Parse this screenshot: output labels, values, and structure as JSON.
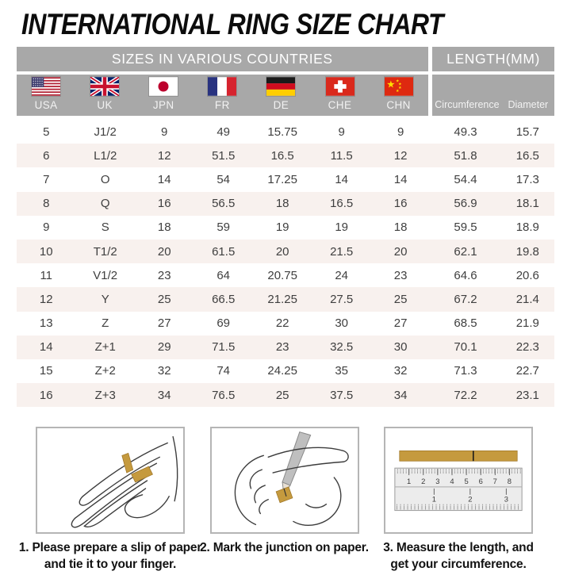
{
  "title": "INTERNATIONAL RING SIZE CHART",
  "colors": {
    "header_gray": "#a8a8a8",
    "header_text": "#ffffff",
    "row_alt": "#f8f1ee",
    "body_text": "#3f3f3f",
    "caption_text": "#121212",
    "paper_gold": "#c59a3e",
    "panel_border": "#b5b5b5"
  },
  "table": {
    "group_headers": [
      "SIZES IN VARIOUS COUNTRIES",
      "LENGTH(MM)"
    ],
    "countries": [
      {
        "code": "USA",
        "icon": "flag-usa-icon"
      },
      {
        "code": "UK",
        "icon": "flag-uk-icon"
      },
      {
        "code": "JPN",
        "icon": "flag-japan-icon"
      },
      {
        "code": "FR",
        "icon": "flag-france-icon"
      },
      {
        "code": "DE",
        "icon": "flag-germany-icon"
      },
      {
        "code": "CHE",
        "icon": "flag-switzerland-icon"
      },
      {
        "code": "CHN",
        "icon": "flag-china-icon"
      }
    ],
    "length_columns": [
      "Circumference",
      "Diameter"
    ],
    "column_keys": [
      "usa",
      "uk",
      "jpn",
      "fr",
      "de",
      "che",
      "chn",
      "circumference",
      "diameter"
    ],
    "rows": [
      [
        "5",
        "J1/2",
        "9",
        "49",
        "15.75",
        "9",
        "9",
        "49.3",
        "15.7"
      ],
      [
        "6",
        "L1/2",
        "12",
        "51.5",
        "16.5",
        "11.5",
        "12",
        "51.8",
        "16.5"
      ],
      [
        "7",
        "O",
        "14",
        "54",
        "17.25",
        "14",
        "14",
        "54.4",
        "17.3"
      ],
      [
        "8",
        "Q",
        "16",
        "56.5",
        "18",
        "16.5",
        "16",
        "56.9",
        "18.1"
      ],
      [
        "9",
        "S",
        "18",
        "59",
        "19",
        "19",
        "18",
        "59.5",
        "18.9"
      ],
      [
        "10",
        "T1/2",
        "20",
        "61.5",
        "20",
        "21.5",
        "20",
        "62.1",
        "19.8"
      ],
      [
        "11",
        "V1/2",
        "23",
        "64",
        "20.75",
        "24",
        "23",
        "64.6",
        "20.6"
      ],
      [
        "12",
        "Y",
        "25",
        "66.5",
        "21.25",
        "27.5",
        "25",
        "67.2",
        "21.4"
      ],
      [
        "13",
        "Z",
        "27",
        "69",
        "22",
        "30",
        "27",
        "68.5",
        "21.9"
      ],
      [
        "14",
        "Z+1",
        "29",
        "71.5",
        "23",
        "32.5",
        "30",
        "70.1",
        "22.3"
      ],
      [
        "15",
        "Z+2",
        "32",
        "74",
        "24.25",
        "35",
        "32",
        "71.3",
        "22.7"
      ],
      [
        "16",
        "Z+3",
        "34",
        "76.5",
        "25",
        "37.5",
        "34",
        "72.2",
        "23.1"
      ]
    ]
  },
  "steps": [
    {
      "icon": "tie-paper-on-finger-illustration",
      "caption": "1. Please prepare a slip of paper\nand tie it to your finger."
    },
    {
      "icon": "mark-junction-illustration",
      "caption": "2. Mark the junction on paper."
    },
    {
      "icon": "measure-ruler-illustration",
      "caption": "3. Measure the length, and\nget your circumference.",
      "ruler": {
        "cm_numbers": [
          "1",
          "2",
          "3",
          "4",
          "5",
          "6",
          "7",
          "8"
        ],
        "inch_numbers": [
          "1",
          "2",
          "3"
        ]
      }
    }
  ]
}
